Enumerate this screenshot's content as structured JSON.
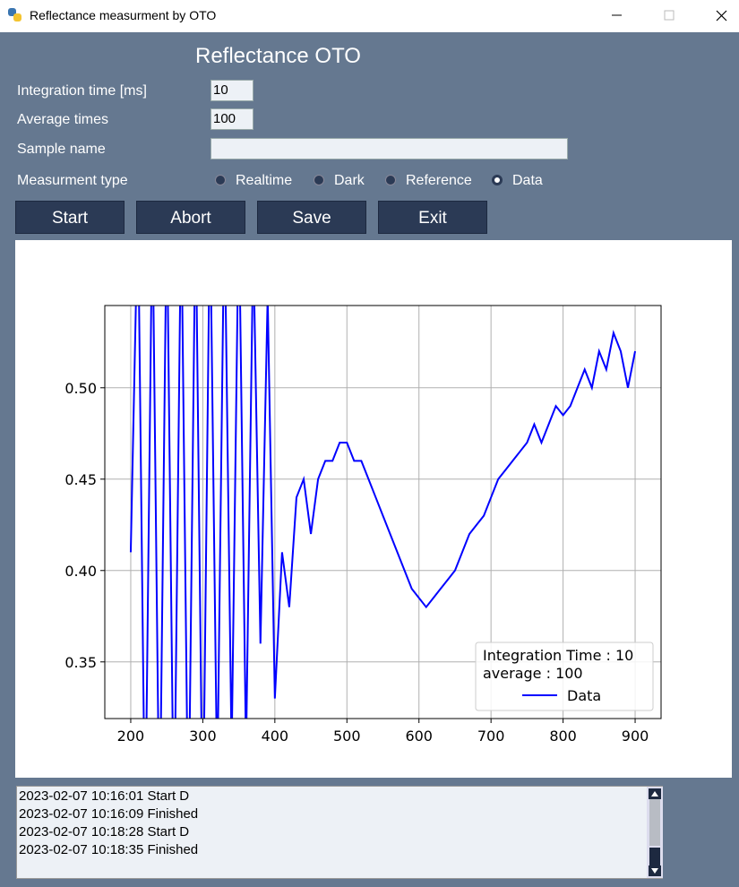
{
  "window": {
    "title": "Reflectance measurment by OTO"
  },
  "header": {
    "title": "Reflectance OTO"
  },
  "form": {
    "integration_time": {
      "label": "Integration time [ms]",
      "value": "10"
    },
    "average_times": {
      "label": "Average times",
      "value": "100"
    },
    "sample_name": {
      "label": "Sample name"
    },
    "measurement_type": {
      "label": "Measurment type",
      "options": [
        "Realtime",
        "Dark",
        "Reference",
        "Data"
      ],
      "selected": 3
    }
  },
  "buttons": [
    "Start",
    "Abort",
    "Save",
    "Exit"
  ],
  "chart_data": {
    "type": "line",
    "annotations": [
      "Integration Time : 10",
      "average : 100"
    ],
    "x": [
      200,
      210,
      220,
      230,
      240,
      250,
      260,
      270,
      280,
      290,
      300,
      310,
      320,
      330,
      340,
      350,
      360,
      370,
      380,
      390,
      400,
      410,
      420,
      430,
      440,
      450,
      460,
      470,
      480,
      490,
      500,
      510,
      520,
      530,
      540,
      550,
      560,
      570,
      580,
      590,
      600,
      610,
      620,
      630,
      640,
      650,
      660,
      670,
      680,
      690,
      700,
      710,
      720,
      730,
      740,
      750,
      760,
      770,
      780,
      790,
      800,
      810,
      820,
      830,
      840,
      850,
      860,
      870,
      880,
      890,
      900
    ],
    "series": [
      {
        "name": "Data",
        "color": "#0000ff",
        "values": [
          0.41,
          0.6,
          0.25,
          0.6,
          0.25,
          0.6,
          0.25,
          0.6,
          0.25,
          0.6,
          0.25,
          0.6,
          0.28,
          0.6,
          0.3,
          0.6,
          0.3,
          0.58,
          0.36,
          0.55,
          0.33,
          0.41,
          0.38,
          0.44,
          0.45,
          0.42,
          0.45,
          0.46,
          0.46,
          0.47,
          0.47,
          0.46,
          0.46,
          0.45,
          0.44,
          0.43,
          0.42,
          0.41,
          0.4,
          0.39,
          0.385,
          0.38,
          0.385,
          0.39,
          0.395,
          0.4,
          0.41,
          0.42,
          0.425,
          0.43,
          0.44,
          0.45,
          0.455,
          0.46,
          0.465,
          0.47,
          0.48,
          0.47,
          0.48,
          0.49,
          0.485,
          0.49,
          0.5,
          0.51,
          0.5,
          0.52,
          0.51,
          0.53,
          0.52,
          0.5,
          0.52
        ]
      }
    ],
    "xlim": [
      164,
      936
    ],
    "ylim": [
      0.319,
      0.545
    ],
    "xticks": [
      200,
      300,
      400,
      500,
      600,
      700,
      800,
      900
    ],
    "yticks": [
      0.35,
      {
        "value": 0.4,
        "label": "0.40"
      },
      0.45,
      {
        "value": 0.5,
        "label": "0.50"
      }
    ],
    "grid": true,
    "legend": "lower right"
  },
  "log": [
    "2023-02-07 10:16:01  Start D",
    "2023-02-07 10:16:09  Finished",
    "2023-02-07 10:18:28  Start D",
    "2023-02-07 10:18:35  Finished"
  ]
}
